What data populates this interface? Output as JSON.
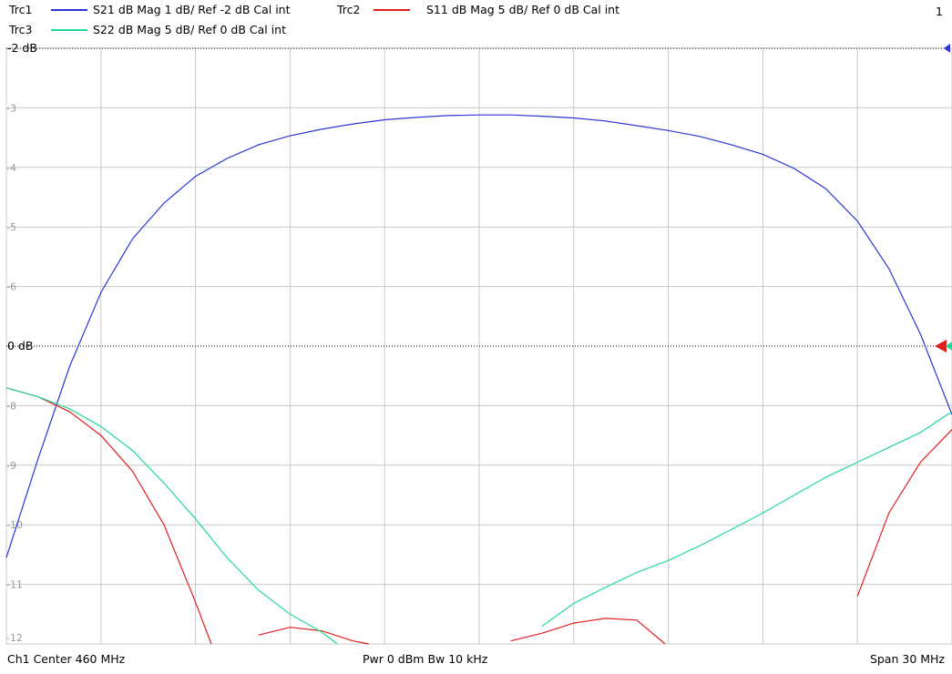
{
  "traces": [
    {
      "name": "Trc1",
      "desc": "S21  dB Mag  1 dB/ Ref -2 dB  Cal int",
      "color": "#2b35d6"
    },
    {
      "name": "Trc2",
      "desc": "S11  dB Mag  5 dB/ Ref 0 dB  Cal int",
      "color": "#e21f1f"
    },
    {
      "name": "Trc3",
      "desc": "S22  dB Mag  5 dB/ Ref 0 dB  Cal int",
      "color": "#22d99a"
    }
  ],
  "channel_number": "1",
  "footer": {
    "left": "Ch1  Center  460 MHz",
    "center": "Pwr  0 dBm  Bw  10 kHz",
    "right": "Span  30 MHz"
  },
  "chart_data": {
    "type": "line",
    "x_center_mhz": 460,
    "x_span_mhz": 30,
    "xlim": [
      445,
      475
    ],
    "ylim": [
      -12,
      -2
    ],
    "grid": true,
    "y_ticks": [
      "-2 dB",
      "-3",
      "-4",
      "-5",
      "-6",
      "0 dB",
      "-8",
      "-9",
      "-10",
      "-11",
      "-12"
    ],
    "ref_markers": [
      {
        "label": "-2 dB",
        "value": -2,
        "colors": [
          "#2b35d6"
        ]
      },
      {
        "label": "0 dB",
        "value": -7,
        "colors": [
          "#e21f1f",
          "#22d99a"
        ]
      }
    ],
    "series": [
      {
        "name": "S21",
        "color": "#2b35d6",
        "x": [
          445,
          446,
          447,
          448,
          449,
          450,
          451,
          452,
          453,
          454,
          455,
          456,
          457,
          458,
          459,
          460,
          461,
          462,
          463,
          464,
          465,
          466,
          467,
          468,
          469,
          470,
          471,
          472,
          473,
          474,
          475
        ],
        "y": [
          -10.55,
          -8.9,
          -7.35,
          -6.1,
          -5.2,
          -4.6,
          -4.15,
          -3.85,
          -3.62,
          -3.47,
          -3.36,
          -3.27,
          -3.2,
          -3.16,
          -3.13,
          -3.12,
          -3.12,
          -3.14,
          -3.17,
          -3.22,
          -3.3,
          -3.38,
          -3.48,
          -3.62,
          -3.78,
          -4.02,
          -4.36,
          -4.9,
          -5.7,
          -6.8,
          -8.15
        ]
      },
      {
        "name": "S11",
        "color": "#e21f1f",
        "x": [
          445,
          446,
          447,
          448,
          449,
          450,
          451,
          451.5,
          452.5,
          453,
          454,
          455,
          456,
          456.5,
          460.5,
          461,
          462,
          463,
          464,
          465,
          465.9,
          471.8,
          472,
          473,
          474,
          475
        ],
        "y": [
          -7.7,
          -7.85,
          -8.1,
          -8.5,
          -9.1,
          -10.0,
          -11.3,
          -12.0,
          -12.0,
          -11.85,
          -11.72,
          -11.78,
          -11.95,
          -12.0,
          -12.0,
          -11.95,
          -11.82,
          -11.65,
          -11.57,
          -11.6,
          -12.0,
          -12.0,
          -11.2,
          -9.8,
          -8.95,
          -8.4
        ]
      },
      {
        "name": "S22",
        "color": "#22d99a",
        "x": [
          445,
          446,
          447,
          448,
          449,
          450,
          451,
          452,
          453,
          454,
          455,
          455.5,
          461.5,
          462,
          463,
          464,
          465,
          466,
          467,
          468,
          469,
          470,
          471,
          472,
          473,
          474,
          475
        ],
        "y": [
          -7.7,
          -7.85,
          -8.05,
          -8.35,
          -8.75,
          -9.3,
          -9.9,
          -10.55,
          -11.1,
          -11.5,
          -11.8,
          -12.0,
          -12.0,
          -11.7,
          -11.32,
          -11.05,
          -10.8,
          -10.6,
          -10.35,
          -10.08,
          -9.8,
          -9.5,
          -9.2,
          -8.95,
          -8.7,
          -8.45,
          -8.1
        ]
      }
    ]
  }
}
